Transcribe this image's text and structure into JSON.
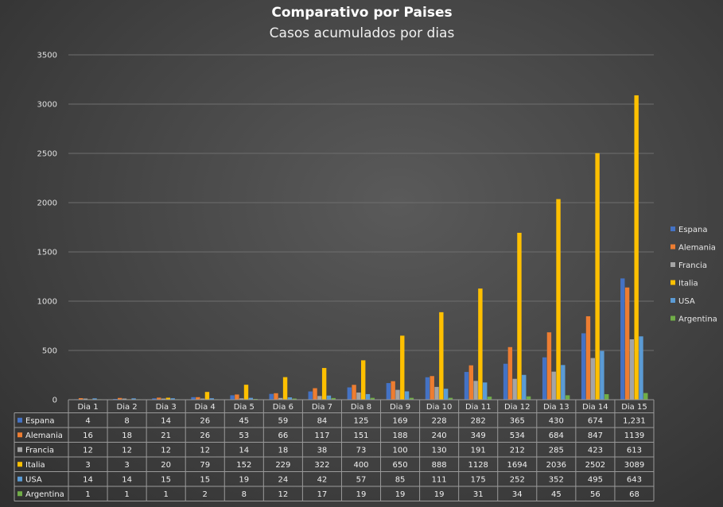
{
  "chart_data": {
    "type": "bar",
    "title": "Comparativo por Paises",
    "subtitle": "Casos acumulados por dias",
    "ylim": [
      0,
      3500
    ],
    "yticks": [
      0,
      500,
      1000,
      1500,
      2000,
      2500,
      3000,
      3500
    ],
    "grid": true,
    "legend_position": "right",
    "categories": [
      "Dia 1",
      "Dia 2",
      "Dia 3",
      "Dia 4",
      "Dia 5",
      "Dia 6",
      "Dia 7",
      "Dia 8",
      "Dia 9",
      "Dia 10",
      "Dia 11",
      "Dia 12",
      "Dia 13",
      "Dia 14",
      "Dia 15"
    ],
    "series": [
      {
        "name": "Espana",
        "color": "#4472c4",
        "values": [
          4,
          8,
          14,
          26,
          45,
          59,
          84,
          125,
          169,
          228,
          282,
          365,
          430,
          674,
          1231
        ],
        "labels": [
          "4",
          "8",
          "14",
          "26",
          "45",
          "59",
          "84",
          "125",
          "169",
          "228",
          "282",
          "365",
          "430",
          "674",
          "1,231"
        ]
      },
      {
        "name": "Alemania",
        "color": "#ed7d31",
        "values": [
          16,
          18,
          21,
          26,
          53,
          66,
          117,
          151,
          188,
          240,
          349,
          534,
          684,
          847,
          1139
        ],
        "labels": [
          "16",
          "18",
          "21",
          "26",
          "53",
          "66",
          "117",
          "151",
          "188",
          "240",
          "349",
          "534",
          "684",
          "847",
          "1139"
        ]
      },
      {
        "name": "Francia",
        "color": "#a5a5a5",
        "values": [
          12,
          12,
          12,
          12,
          14,
          18,
          38,
          73,
          100,
          130,
          191,
          212,
          285,
          423,
          613
        ],
        "labels": [
          "12",
          "12",
          "12",
          "12",
          "14",
          "18",
          "38",
          "73",
          "100",
          "130",
          "191",
          "212",
          "285",
          "423",
          "613"
        ]
      },
      {
        "name": "Italia",
        "color": "#ffc000",
        "values": [
          3,
          3,
          20,
          79,
          152,
          229,
          322,
          400,
          650,
          888,
          1128,
          1694,
          2036,
          2502,
          3089
        ],
        "labels": [
          "3",
          "3",
          "20",
          "79",
          "152",
          "229",
          "322",
          "400",
          "650",
          "888",
          "1128",
          "1694",
          "2036",
          "2502",
          "3089"
        ]
      },
      {
        "name": "USA",
        "color": "#5b9bd5",
        "values": [
          14,
          14,
          15,
          15,
          19,
          24,
          42,
          57,
          85,
          111,
          175,
          252,
          352,
          495,
          643
        ],
        "labels": [
          "14",
          "14",
          "15",
          "15",
          "19",
          "24",
          "42",
          "57",
          "85",
          "111",
          "175",
          "252",
          "352",
          "495",
          "643"
        ]
      },
      {
        "name": "Argentina",
        "color": "#70ad47",
        "values": [
          1,
          1,
          1,
          2,
          8,
          12,
          17,
          19,
          19,
          19,
          31,
          34,
          45,
          56,
          68
        ],
        "labels": [
          "1",
          "1",
          "1",
          "2",
          "8",
          "12",
          "17",
          "19",
          "19",
          "19",
          "31",
          "34",
          "45",
          "56",
          "68"
        ]
      }
    ]
  }
}
